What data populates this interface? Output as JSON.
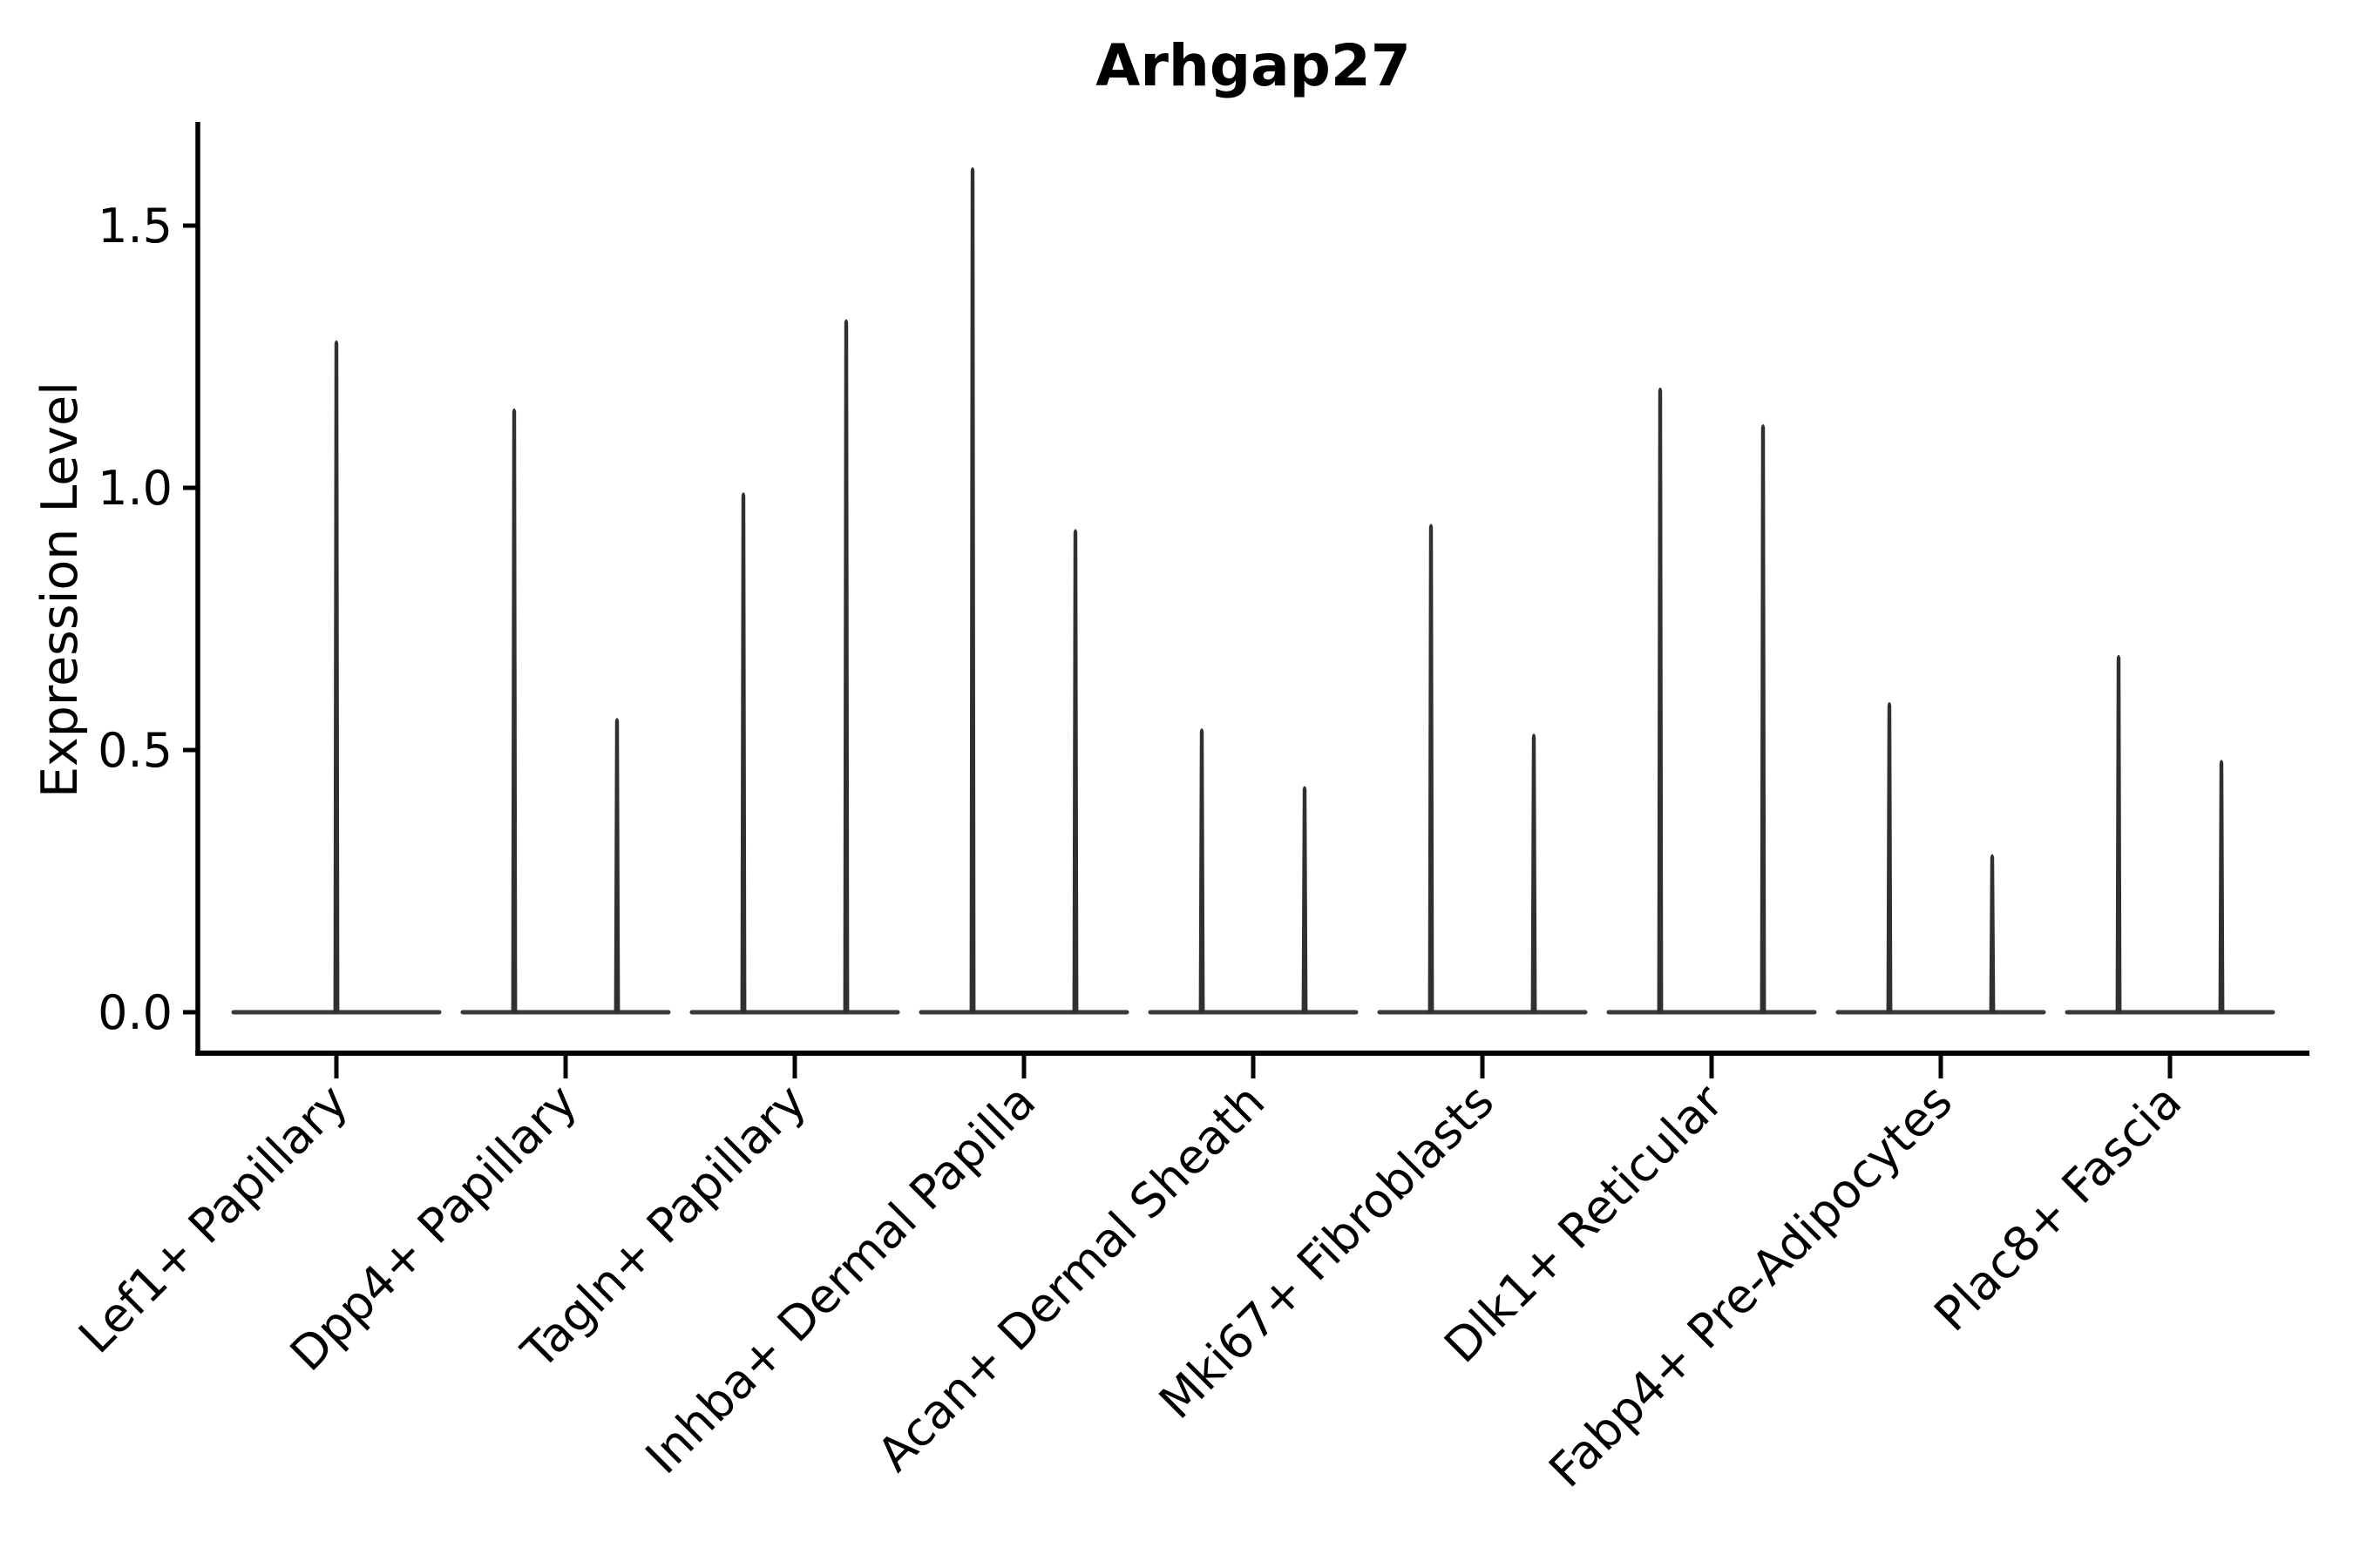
{
  "figure": {
    "title": "Arhgap27",
    "ylabel": "Expression Level"
  },
  "chart_data": {
    "type": "violin",
    "title": "Arhgap27",
    "xlabel": "",
    "ylabel": "Expression Level",
    "ylim": [
      0,
      1.69
    ],
    "ytick_values": [
      0.0,
      0.5,
      1.0,
      1.5
    ],
    "ytick_labels": [
      "0.0",
      "0.5",
      "1.0",
      "1.5"
    ],
    "grid": false,
    "legend": null,
    "categories": [
      "Lef1+ Papillary",
      "Dpp4+ Papillary",
      "Tagln+ Papillary",
      "Inhba+ Dermal Papilla",
      "Acan+ Dermal Sheath",
      "Mki67+ Fibroblasts",
      "Dlk1+ Reticular",
      "Fabp4+ Pre-Adipocytes",
      "Plac8+ Fascia"
    ],
    "groups": [
      {
        "label": "Lef1+ Papillary",
        "violin_max_values": [
          1.28
        ]
      },
      {
        "label": "Dpp4+ Papillary",
        "violin_max_values": [
          1.15,
          0.56
        ]
      },
      {
        "label": "Tagln+ Papillary",
        "violin_max_values": [
          0.99,
          1.32
        ]
      },
      {
        "label": "Inhba+ Dermal Papilla",
        "violin_max_values": [
          1.61,
          0.92
        ]
      },
      {
        "label": "Acan+ Dermal Sheath",
        "violin_max_values": [
          0.54,
          0.43
        ]
      },
      {
        "label": "Mki67+ Fibroblasts",
        "violin_max_values": [
          0.93,
          0.53
        ]
      },
      {
        "label": "Dlk1+ Reticular",
        "violin_max_values": [
          1.19,
          1.12
        ]
      },
      {
        "label": "Fabp4+ Pre-Adipocytes",
        "violin_max_values": [
          0.59,
          0.3
        ]
      },
      {
        "label": "Plac8+ Fascia",
        "violin_max_values": [
          0.68,
          0.48
        ]
      }
    ],
    "colors": {
      "violin": "#303030",
      "baseline": "#3a3a3a",
      "axis": "#000000",
      "text": "#000000",
      "background": "#ffffff"
    }
  }
}
